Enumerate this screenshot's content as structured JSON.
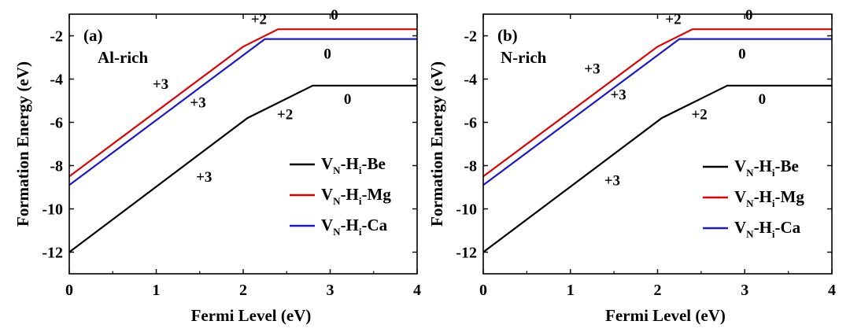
{
  "colors": {
    "series_be": "#000000",
    "series_mg": "#e00000",
    "series_ca": "#1a1acc",
    "axis": "#000000"
  },
  "chart_data": [
    {
      "type": "line",
      "panel_label": "(a)",
      "condition": "Al-rich",
      "xlabel": "Fermi  Level (eV)",
      "ylabel": "Formation Energy (eV)",
      "xlim": [
        0,
        4
      ],
      "ylim": [
        -13,
        -1
      ],
      "xticks": [
        0,
        1,
        2,
        3,
        4
      ],
      "yticks": [
        -2,
        -4,
        -6,
        -8,
        -10,
        -12
      ],
      "grid": false,
      "legend_position": "lower-right",
      "series": [
        {
          "name_main": "V",
          "name_sub1": "N",
          "name_mid": "-H",
          "name_sub2": "i",
          "name_end": "-Be",
          "color_key": "series_be",
          "x": [
            0,
            2.05,
            2.8,
            4
          ],
          "y": [
            -12.0,
            -5.8,
            -4.3,
            -4.3
          ]
        },
        {
          "name_main": "V",
          "name_sub1": "N",
          "name_mid": "-H",
          "name_sub2": "i",
          "name_end": "-Mg",
          "color_key": "series_mg",
          "x": [
            0,
            2.0,
            2.4,
            4
          ],
          "y": [
            -8.5,
            -2.5,
            -1.7,
            -1.7
          ]
        },
        {
          "name_main": "V",
          "name_sub1": "N",
          "name_mid": "-H",
          "name_sub2": "i",
          "name_end": "-Ca",
          "color_key": "series_ca",
          "x": [
            0,
            2.25,
            4
          ],
          "y": [
            -8.9,
            -2.15,
            -2.15
          ]
        }
      ],
      "annotations": [
        {
          "text": "+2",
          "x": 2.18,
          "y": -1.45
        },
        {
          "text": "0",
          "x": 3.05,
          "y": -1.25
        },
        {
          "text": "0",
          "x": 2.97,
          "y": -3.05
        },
        {
          "text": "+3",
          "x": 1.05,
          "y": -4.45
        },
        {
          "text": "+3",
          "x": 1.48,
          "y": -5.3
        },
        {
          "text": "0",
          "x": 3.2,
          "y": -5.15
        },
        {
          "text": "+2",
          "x": 2.48,
          "y": -5.85
        },
        {
          "text": "+3",
          "x": 1.55,
          "y": -8.75
        }
      ]
    },
    {
      "type": "line",
      "panel_label": "(b)",
      "condition": "N-rich",
      "xlabel": "Fermi  Level (eV)",
      "ylabel": "Formation Energy (eV)",
      "xlim": [
        0,
        4
      ],
      "ylim": [
        -13,
        -1
      ],
      "xticks": [
        0,
        1,
        2,
        3,
        4
      ],
      "yticks": [
        -2,
        -4,
        -6,
        -8,
        -10,
        -12
      ],
      "grid": false,
      "legend_position": "lower-right",
      "series": [
        {
          "name_main": "V",
          "name_sub1": "N",
          "name_mid": "-H",
          "name_sub2": "i",
          "name_end": "-Be",
          "color_key": "series_be",
          "x": [
            0,
            2.05,
            2.8,
            4
          ],
          "y": [
            -12.0,
            -5.8,
            -4.3,
            -4.3
          ]
        },
        {
          "name_main": "V",
          "name_sub1": "N",
          "name_mid": "-H",
          "name_sub2": "i",
          "name_end": "-Mg",
          "color_key": "series_mg",
          "x": [
            0,
            2.0,
            2.4,
            4
          ],
          "y": [
            -8.5,
            -2.5,
            -1.7,
            -1.7
          ]
        },
        {
          "name_main": "V",
          "name_sub1": "N",
          "name_mid": "-H",
          "name_sub2": "i",
          "name_end": "-Ca",
          "color_key": "series_ca",
          "x": [
            0,
            2.25,
            4
          ],
          "y": [
            -8.9,
            -2.15,
            -2.15
          ]
        }
      ],
      "annotations": [
        {
          "text": "+2",
          "x": 2.18,
          "y": -1.45
        },
        {
          "text": "0",
          "x": 3.05,
          "y": -1.25
        },
        {
          "text": "0",
          "x": 2.97,
          "y": -3.05
        },
        {
          "text": "+3",
          "x": 1.25,
          "y": -3.75
        },
        {
          "text": "+3",
          "x": 1.55,
          "y": -4.95
        },
        {
          "text": "0",
          "x": 3.2,
          "y": -5.15
        },
        {
          "text": "+2",
          "x": 2.48,
          "y": -5.85
        },
        {
          "text": "+3",
          "x": 1.48,
          "y": -8.9
        }
      ]
    }
  ]
}
